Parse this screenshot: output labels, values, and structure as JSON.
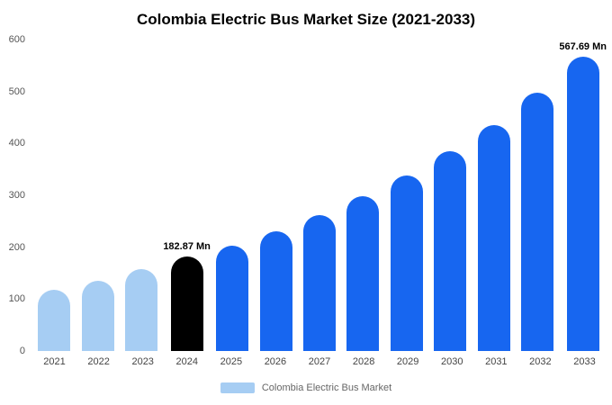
{
  "title": "Colombia Electric Bus Market Size (2021-2033)",
  "legend": {
    "label": "Colombia Electric Bus Market",
    "swatch_color": "#a6cdf3"
  },
  "colors": {
    "past_bars": "#a6cdf3",
    "highlight_bar": "#000000",
    "forecast_bars": "#1766f0"
  },
  "chart_data": {
    "type": "bar",
    "title": "Colombia Electric Bus Market Size (2021-2033)",
    "xlabel": "",
    "ylabel": "",
    "ylim": [
      0,
      600
    ],
    "yticks": [
      0,
      100,
      200,
      300,
      400,
      500,
      600
    ],
    "grid": false,
    "legend_position": "bottom",
    "categories": [
      "2021",
      "2022",
      "2023",
      "2024",
      "2025",
      "2026",
      "2027",
      "2028",
      "2029",
      "2030",
      "2031",
      "2032",
      "2033"
    ],
    "values": [
      118,
      135,
      157,
      182.87,
      203,
      231,
      262,
      298,
      338,
      385,
      436,
      497,
      567.69
    ],
    "bar_colors": [
      "#a6cdf3",
      "#a6cdf3",
      "#a6cdf3",
      "#000000",
      "#1766f0",
      "#1766f0",
      "#1766f0",
      "#1766f0",
      "#1766f0",
      "#1766f0",
      "#1766f0",
      "#1766f0",
      "#1766f0"
    ],
    "annotations": [
      {
        "category": "2024",
        "text": "182.87 Mn"
      },
      {
        "category": "2033",
        "text": "567.69 Mn"
      }
    ]
  }
}
